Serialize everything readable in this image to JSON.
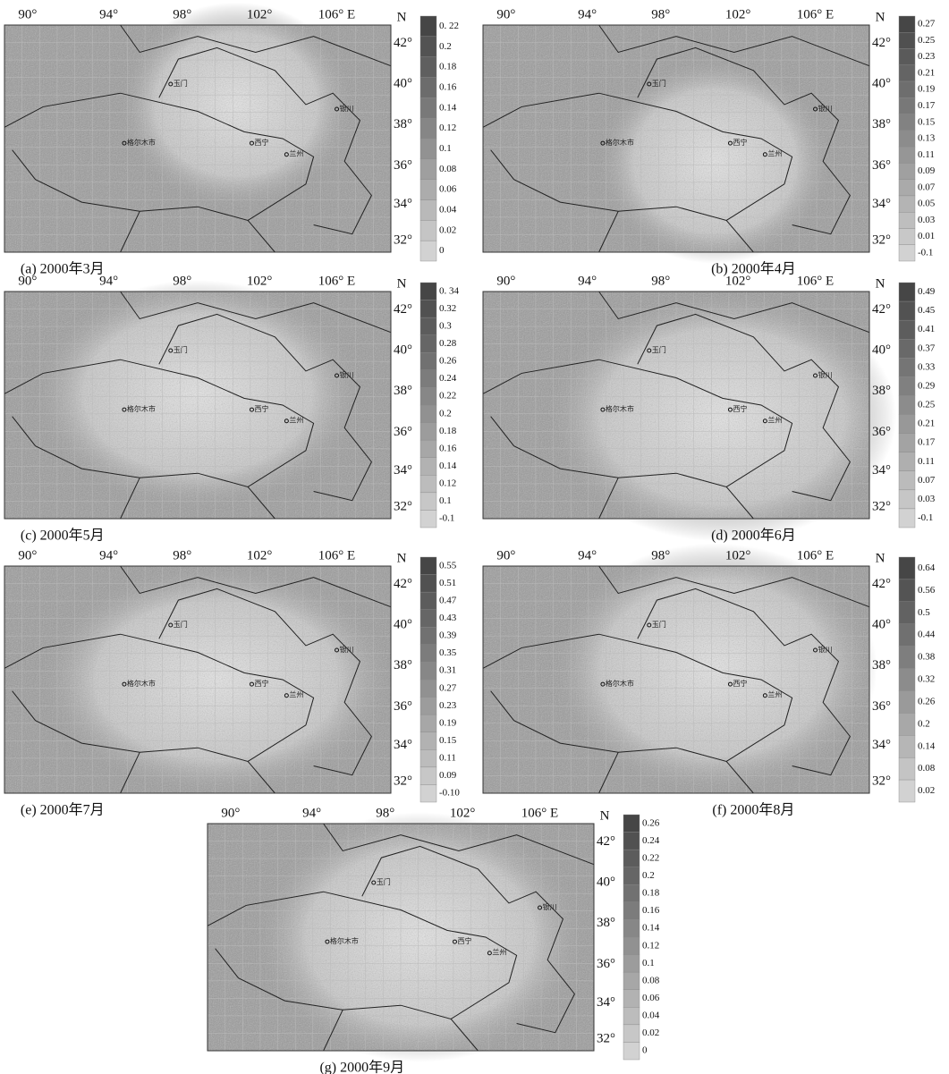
{
  "map_labels": {
    "lon": [
      "90°",
      "94°",
      "98°",
      "102°",
      "106° E"
    ],
    "north": "N",
    "lat": [
      "42°",
      "40°",
      "38°",
      "36°",
      "34°",
      "32°"
    ],
    "cities": [
      "玉门",
      "格尔木市",
      "西宁",
      "兰州",
      "银川"
    ]
  },
  "panels": [
    {
      "caption": "(a) 2000年3月",
      "colorbar": [
        "0. 22",
        "0.2",
        "0.18",
        "0.16",
        "0.14",
        "0.12",
        "0.1",
        "0.08",
        "0.06",
        "0.04",
        "0.02",
        "0"
      ]
    },
    {
      "caption": "(b) 2000年4月",
      "colorbar": [
        "0.27",
        "0.25",
        "0.23",
        "0.21",
        "0.19",
        "0.17",
        "0.15",
        "0.13",
        "0.11",
        "0.09",
        "0.07",
        "0.05",
        "0.03",
        "0.01",
        "-0.1"
      ]
    },
    {
      "caption": "(c) 2000年5月",
      "colorbar": [
        "0. 34",
        "0.32",
        "0.3",
        "0.28",
        "0.26",
        "0.24",
        "0.22",
        "0.2",
        "0.18",
        "0.16",
        "0.14",
        "0.12",
        "0.1",
        "-0.1"
      ]
    },
    {
      "caption": "(d) 2000年6月",
      "colorbar": [
        "0.49",
        "0.45",
        "0.41",
        "0.37",
        "0.33",
        "0.29",
        "0.25",
        "0.21",
        "0.17",
        "0.11",
        "0.07",
        "0.03",
        "-0.1"
      ]
    },
    {
      "caption": "(e) 2000年7月",
      "colorbar": [
        "0.55",
        "0.51",
        "0.47",
        "0.43",
        "0.39",
        "0.35",
        "0.31",
        "0.27",
        "0.23",
        "0.19",
        "0.15",
        "0.11",
        "0.09",
        "-0.10"
      ]
    },
    {
      "caption": "(f) 2000年8月",
      "colorbar": [
        "0.64",
        "0.56",
        "0.5",
        "0.44",
        "0.38",
        "0.32",
        "0.26",
        "0.2",
        "0.14",
        "0.08",
        "0.02"
      ]
    },
    {
      "caption": "(g) 2000年9月",
      "colorbar": [
        "0.26",
        "0.24",
        "0.22",
        "0.2",
        "0.18",
        "0.16",
        "0.14",
        "0.12",
        "0.1",
        "0.08",
        "0.06",
        "0.04",
        "0.02",
        "0"
      ]
    }
  ]
}
